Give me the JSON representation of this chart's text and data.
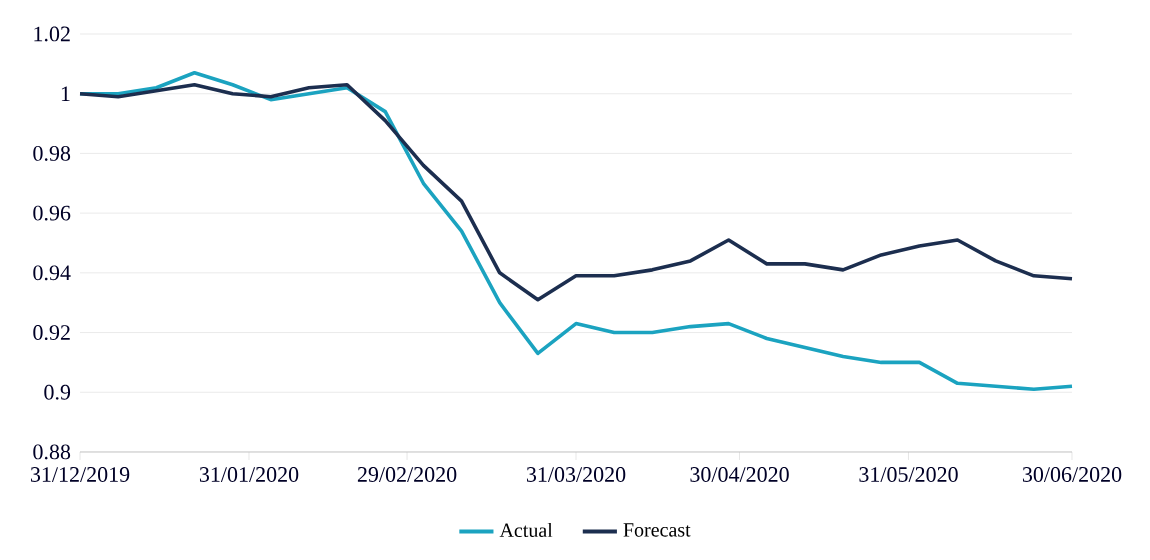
{
  "chart_data": {
    "type": "line",
    "x": [
      "2019-12-31",
      "2020-01-07",
      "2020-01-14",
      "2020-01-21",
      "2020-01-28",
      "2020-02-04",
      "2020-02-11",
      "2020-02-18",
      "2020-02-25",
      "2020-03-03",
      "2020-03-10",
      "2020-03-17",
      "2020-03-24",
      "2020-03-31",
      "2020-04-07",
      "2020-04-14",
      "2020-04-21",
      "2020-04-28",
      "2020-05-05",
      "2020-05-12",
      "2020-05-19",
      "2020-05-26",
      "2020-06-02",
      "2020-06-09",
      "2020-06-16",
      "2020-06-23",
      "2020-06-30"
    ],
    "series": [
      {
        "name": "Actual",
        "color": "#1ba3c0",
        "values": [
          1.0,
          1.0,
          1.002,
          1.007,
          1.003,
          0.998,
          1.0,
          1.002,
          0.994,
          0.97,
          0.954,
          0.93,
          0.913,
          0.923,
          0.92,
          0.92,
          0.922,
          0.923,
          0.918,
          0.915,
          0.912,
          0.91,
          0.91,
          0.903,
          0.902,
          0.901,
          0.902
        ]
      },
      {
        "name": "Forecast",
        "color": "#1c2e4f",
        "values": [
          1.0,
          0.999,
          1.001,
          1.003,
          1.0,
          0.999,
          1.002,
          1.003,
          0.991,
          0.976,
          0.964,
          0.94,
          0.931,
          0.939,
          0.939,
          0.941,
          0.944,
          0.951,
          0.943,
          0.943,
          0.941,
          0.946,
          0.949,
          0.951,
          0.944,
          0.939,
          0.938
        ]
      }
    ],
    "xlim": [
      "2019-12-31",
      "2020-06-30"
    ],
    "xticks": [
      {
        "value": "2019-12-31",
        "label": "31/12/2019"
      },
      {
        "value": "2020-01-31",
        "label": "31/01/2020"
      },
      {
        "value": "2020-02-29",
        "label": "29/02/2020"
      },
      {
        "value": "2020-03-31",
        "label": "31/03/2020"
      },
      {
        "value": "2020-04-30",
        "label": "30/04/2020"
      },
      {
        "value": "2020-05-31",
        "label": "31/05/2020"
      },
      {
        "value": "2020-06-30",
        "label": "30/06/2020"
      }
    ],
    "ylim": [
      0.88,
      1.02
    ],
    "yticks": [
      0.88,
      0.9,
      0.92,
      0.94,
      0.96,
      0.98,
      1,
      1.02
    ],
    "grid": "y",
    "legend": "bottom"
  }
}
